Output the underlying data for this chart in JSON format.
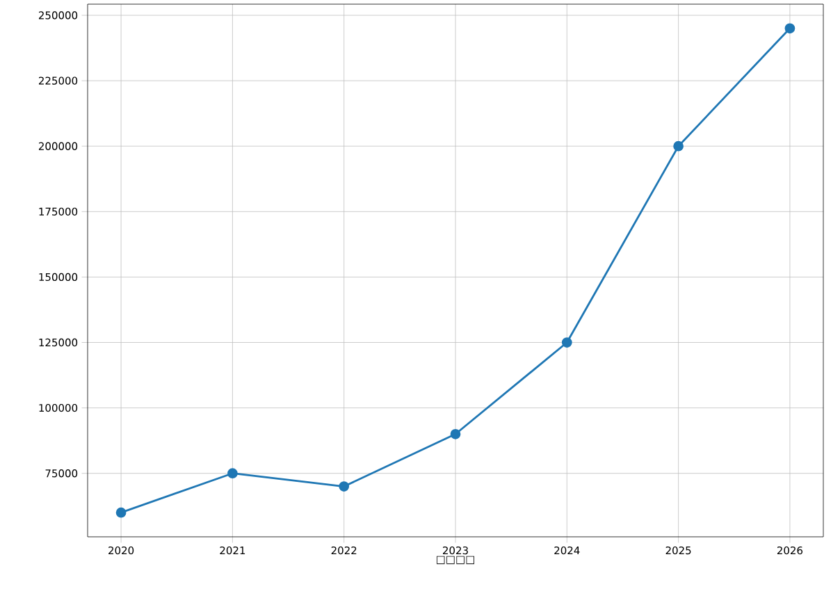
{
  "chart_data": {
    "type": "line",
    "xlabel": "□□□□",
    "x": [
      2020,
      2021,
      2022,
      2023,
      2024,
      2025,
      2026
    ],
    "series": [
      {
        "color": "#1f77b4",
        "values": [
          60000,
          75000,
          70000,
          90000,
          125000,
          200000,
          245000
        ]
      }
    ],
    "xlim": [
      2019.7,
      2026.3
    ],
    "ylim": [
      50750,
      254250
    ],
    "xticks": [
      2020,
      2021,
      2022,
      2023,
      2024,
      2025,
      2026
    ],
    "yticks": [
      75000,
      100000,
      125000,
      150000,
      175000,
      200000,
      225000,
      250000
    ],
    "grid": true,
    "marker": "circle",
    "line_style": "solid"
  }
}
